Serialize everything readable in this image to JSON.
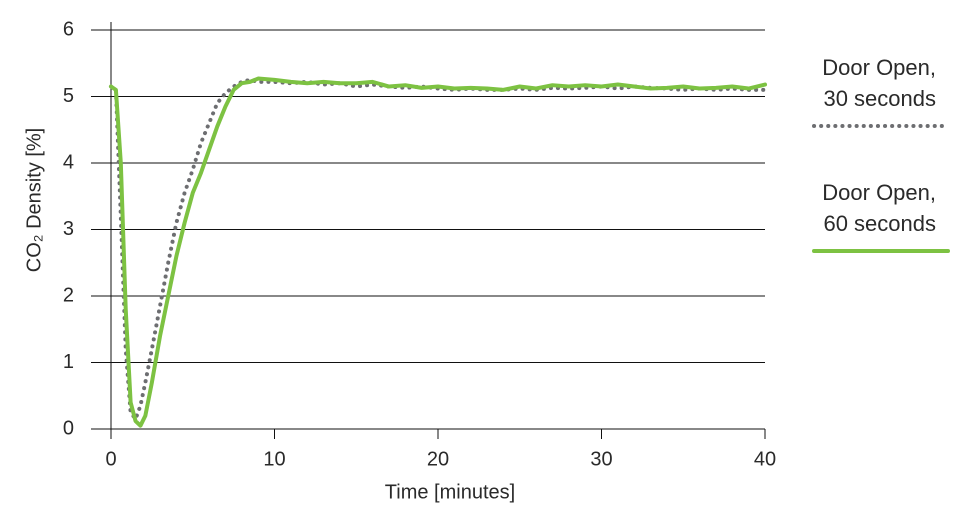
{
  "chart_data": {
    "type": "line",
    "xlabel": "Time [minutes]",
    "ylabel": "CO₂ Density [%]",
    "x": [
      0,
      0.3,
      0.6,
      0.9,
      1.2,
      1.5,
      1.8,
      2.1,
      2.5,
      3,
      3.5,
      4,
      4.5,
      5,
      5.5,
      6,
      6.5,
      7,
      7.5,
      8,
      8.5,
      9,
      10,
      11,
      12,
      13,
      14,
      15,
      16,
      17,
      18,
      19,
      20,
      21,
      22,
      23,
      24,
      25,
      26,
      27,
      28,
      29,
      30,
      31,
      32,
      33,
      34,
      35,
      36,
      37,
      38,
      39,
      40
    ],
    "series": [
      {
        "name": "Door Open, 30 seconds",
        "color": "#6d6e71",
        "dash": "dotted",
        "values": [
          5.15,
          5.1,
          3.2,
          1.2,
          0.25,
          0.15,
          0.35,
          0.7,
          1.2,
          1.85,
          2.5,
          3.1,
          3.55,
          3.9,
          4.3,
          4.6,
          4.9,
          5.05,
          5.15,
          5.22,
          5.25,
          5.22,
          5.22,
          5.2,
          5.22,
          5.18,
          5.2,
          5.15,
          5.18,
          5.15,
          5.13,
          5.15,
          5.12,
          5.1,
          5.12,
          5.1,
          5.1,
          5.12,
          5.1,
          5.13,
          5.12,
          5.13,
          5.15,
          5.12,
          5.15,
          5.13,
          5.12,
          5.1,
          5.12,
          5.1,
          5.12,
          5.1,
          5.1
        ]
      },
      {
        "name": "Door Open, 60 seconds",
        "color": "#7dc242",
        "dash": "solid",
        "values": [
          5.15,
          5.1,
          4.0,
          1.8,
          0.4,
          0.12,
          0.05,
          0.2,
          0.7,
          1.4,
          2.0,
          2.6,
          3.1,
          3.55,
          3.85,
          4.2,
          4.55,
          4.85,
          5.1,
          5.2,
          5.22,
          5.27,
          5.25,
          5.22,
          5.2,
          5.22,
          5.2,
          5.2,
          5.22,
          5.15,
          5.17,
          5.13,
          5.15,
          5.12,
          5.13,
          5.12,
          5.1,
          5.15,
          5.12,
          5.17,
          5.15,
          5.17,
          5.15,
          5.18,
          5.15,
          5.12,
          5.13,
          5.15,
          5.12,
          5.13,
          5.15,
          5.12,
          5.18
        ]
      }
    ],
    "xlim": [
      0,
      40
    ],
    "xticks": [
      0,
      10,
      20,
      30,
      40
    ],
    "ylim": [
      0,
      6
    ],
    "yticks": [
      0,
      1,
      2,
      3,
      4,
      5,
      6
    ],
    "grid": true,
    "legend": "right"
  }
}
